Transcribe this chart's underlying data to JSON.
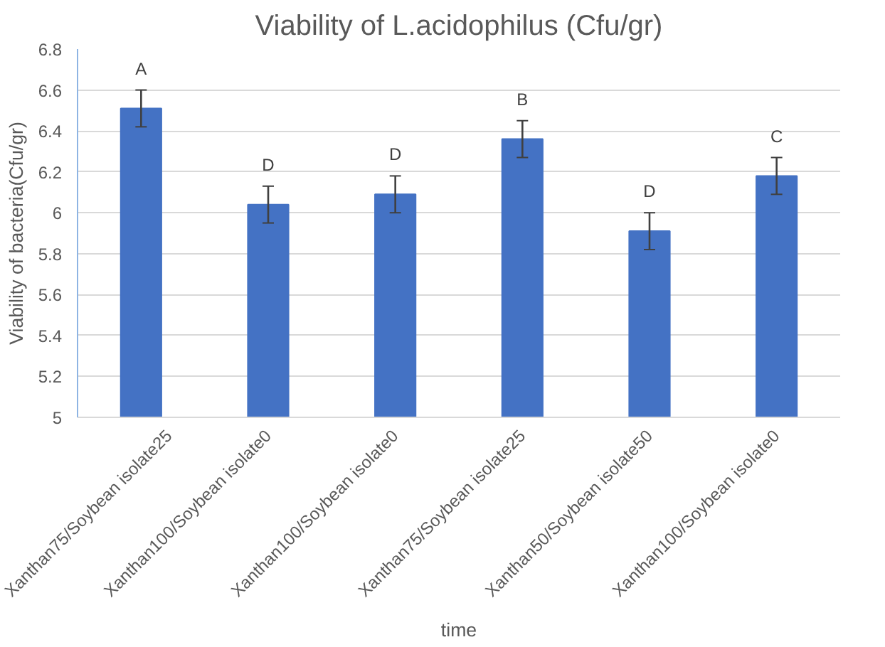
{
  "chart_data": {
    "type": "bar",
    "title": "Viability of L.acidophilus (Cfu/gr)",
    "xlabel": "time",
    "ylabel": "Viability of bacteria(Cfu/gr)",
    "categories": [
      "Xanthan75/Soybean isolate25",
      "Xanthan100/Soybean isolate0",
      "Xanthan100/Soybean isolate0",
      "Xanthan75/Soybean isolate25",
      "Xanthan50/Soybean isolate50",
      "Xanthan100/Soybean isolate0"
    ],
    "values": [
      6.51,
      6.04,
      6.09,
      6.36,
      5.91,
      6.18
    ],
    "errors": [
      0.09,
      0.09,
      0.09,
      0.09,
      0.09,
      0.09
    ],
    "value_labels": [
      "A",
      "D",
      "D",
      "B",
      "D",
      "C"
    ],
    "color": "#4472c4",
    "ylim": [
      5,
      6.8
    ],
    "yticks": [
      5,
      5.2,
      5.4,
      5.6,
      5.8,
      6,
      6.2,
      6.4,
      6.6,
      6.8
    ],
    "grid": "y"
  }
}
